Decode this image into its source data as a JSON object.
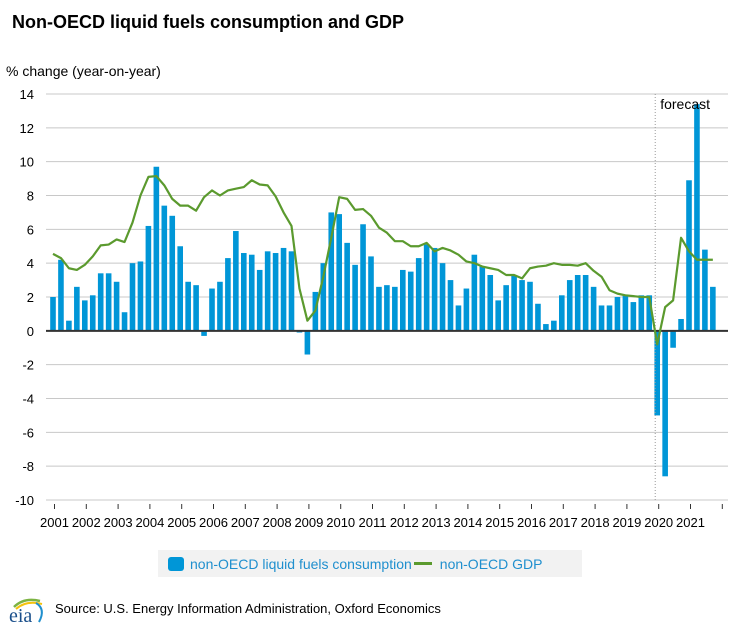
{
  "chart_data": {
    "type": "bar",
    "title": "Non-OECD liquid fuels consumption and GDP",
    "ylabel": "% change (year-on-year)",
    "xlabel": "",
    "ylim": [
      -10,
      14
    ],
    "yticks": [
      14,
      12,
      10,
      8,
      6,
      4,
      2,
      0,
      -2,
      -4,
      -6,
      -8,
      -10
    ],
    "grid": true,
    "xticks": [
      "2001",
      "2002",
      "2003",
      "2004",
      "2005",
      "2006",
      "2007",
      "2008",
      "2009",
      "2010",
      "2011",
      "2012",
      "2013",
      "2014",
      "2015",
      "2016",
      "2017",
      "2018",
      "2019",
      "2020",
      "2021"
    ],
    "frequency": "quarterly",
    "annotation": "forecast",
    "forecast_start": "2020Q1",
    "legend_position": "bottom",
    "series": [
      {
        "name": "non-OECD liquid fuels consumption",
        "type": "bar",
        "color": "#0096d7",
        "values": [
          2.0,
          4.2,
          0.6,
          2.6,
          1.8,
          2.1,
          3.4,
          3.4,
          2.9,
          1.1,
          4.0,
          4.1,
          6.2,
          9.7,
          7.4,
          6.8,
          5.0,
          2.9,
          2.7,
          -0.3,
          2.5,
          2.9,
          4.3,
          5.9,
          4.6,
          4.5,
          3.6,
          4.7,
          4.6,
          4.9,
          4.7,
          -0.1,
          -1.4,
          2.3,
          4.0,
          7.0,
          6.9,
          5.2,
          3.9,
          6.3,
          4.4,
          2.6,
          2.7,
          2.6,
          3.6,
          3.5,
          4.3,
          5.1,
          4.9,
          4.0,
          3.0,
          1.5,
          2.5,
          4.5,
          3.8,
          3.3,
          1.8,
          2.7,
          3.3,
          3.0,
          2.9,
          1.6,
          0.4,
          0.6,
          2.1,
          3.0,
          3.3,
          3.3,
          2.6,
          1.5,
          1.5,
          2.0,
          2.1,
          1.7,
          2.1,
          2.1,
          -5.0,
          -8.6,
          -1.0,
          0.7,
          8.9,
          13.4,
          4.8,
          2.6
        ]
      },
      {
        "name": "non-OECD GDP",
        "type": "line",
        "color": "#5b9a2e",
        "values": [
          4.55,
          4.3,
          3.7,
          3.6,
          3.9,
          4.4,
          5.05,
          5.1,
          5.4,
          5.25,
          6.4,
          8.0,
          9.1,
          9.15,
          8.6,
          7.8,
          7.4,
          7.4,
          7.1,
          7.9,
          8.3,
          8.0,
          8.3,
          8.4,
          8.5,
          8.9,
          8.65,
          8.6,
          7.95,
          7.0,
          6.2,
          2.5,
          0.6,
          1.2,
          3.2,
          5.5,
          7.9,
          7.8,
          7.15,
          7.2,
          6.8,
          6.1,
          5.8,
          5.3,
          5.3,
          5.0,
          5.0,
          5.2,
          4.7,
          4.9,
          4.75,
          4.5,
          4.1,
          4.0,
          3.8,
          3.7,
          3.6,
          3.3,
          3.3,
          3.1,
          3.7,
          3.8,
          3.85,
          4.0,
          3.9,
          3.9,
          3.85,
          4.0,
          3.55,
          3.2,
          2.4,
          2.2,
          2.1,
          2.05,
          2.0,
          2.0,
          -0.8,
          1.4,
          1.8,
          5.5,
          4.7,
          4.2,
          4.2,
          4.2
        ]
      }
    ]
  },
  "legend": {
    "bar_label": "non-OECD liquid fuels consumption",
    "line_label": "non-OECD GDP"
  },
  "footer": {
    "source": "Source: U.S. Energy Information Administration, Oxford Economics",
    "logo_text": "eia"
  }
}
